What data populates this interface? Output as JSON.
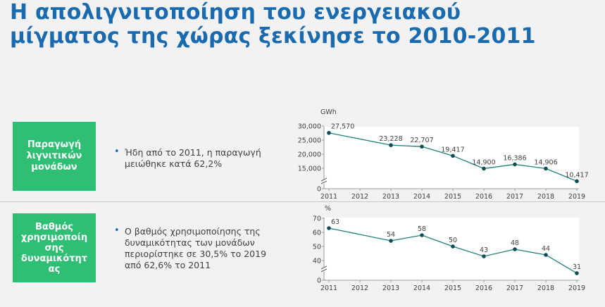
{
  "title": {
    "line1": "Η απολιγνιτοποίηση του ενεργειακού",
    "line2": "μίγματος της χώρας ξεκίνησε το 2010-2011"
  },
  "section1": {
    "label_lines": [
      "Παραγωγή",
      "λιγνιτικών",
      "μονάδων"
    ],
    "bullet_lines": [
      "Ήδη από το 2011, η παραγωγή",
      "μειώθηκε κατά 62,2%"
    ]
  },
  "section2": {
    "label_lines": [
      "Βαθμός",
      "χρησιμοποίη",
      "σης",
      "δυναμικότητ",
      "ας"
    ],
    "bullet_lines": [
      "Ο βαθμός χρησιμοποίησης της",
      "δυναμικότητας των μονάδων",
      "περιορίστηκε σε 30,5% το 2019",
      "από 62,6% το 2011"
    ]
  },
  "colors": {
    "title": "#1a6ab0",
    "box": "#2fbf74",
    "line": "#1f7f7f",
    "marker": "#0b4f55"
  },
  "chart_data": [
    {
      "type": "line",
      "unit_label": "GWh",
      "categories": [
        "2011",
        "2012",
        "2013",
        "2014",
        "2015",
        "2016",
        "2017",
        "2018",
        "2019"
      ],
      "points": [
        {
          "x": "2011",
          "y": 27570,
          "label": "27,570"
        },
        {
          "x": "2013",
          "y": 23228,
          "label": "23,228"
        },
        {
          "x": "2014",
          "y": 22707,
          "label": "22,707"
        },
        {
          "x": "2015",
          "y": 19417,
          "label": "19,417"
        },
        {
          "x": "2016",
          "y": 14900,
          "label": "14,900"
        },
        {
          "x": "2017",
          "y": 16386,
          "label": "16,386"
        },
        {
          "x": "2018",
          "y": 14906,
          "label": "14,906"
        },
        {
          "x": "2019",
          "y": 10417,
          "label": "10,417"
        }
      ],
      "yticks": [
        {
          "v": 30000,
          "label": "30,000"
        },
        {
          "v": 25000,
          "label": "25,000"
        },
        {
          "v": 20000,
          "label": "20,000"
        },
        {
          "v": 15000,
          "label": "15,000"
        },
        {
          "v": 0,
          "label": "0"
        }
      ],
      "ylim": [
        10000,
        30000
      ],
      "axis_break": true,
      "grid": false
    },
    {
      "type": "line",
      "unit_label": "%",
      "categories": [
        "2011",
        "2012",
        "2013",
        "2014",
        "2015",
        "2016",
        "2017",
        "2018",
        "2019"
      ],
      "points": [
        {
          "x": "2011",
          "y": 63,
          "label": "63"
        },
        {
          "x": "2013",
          "y": 54,
          "label": "54"
        },
        {
          "x": "2014",
          "y": 58,
          "label": "58"
        },
        {
          "x": "2015",
          "y": 50,
          "label": "50"
        },
        {
          "x": "2016",
          "y": 43,
          "label": "43"
        },
        {
          "x": "2017",
          "y": 48,
          "label": "48"
        },
        {
          "x": "2018",
          "y": 44,
          "label": "44"
        },
        {
          "x": "2019",
          "y": 31,
          "label": "31"
        }
      ],
      "yticks": [
        {
          "v": 70,
          "label": "70"
        },
        {
          "v": 60,
          "label": "60"
        },
        {
          "v": 50,
          "label": "50"
        },
        {
          "v": 40,
          "label": "40"
        },
        {
          "v": 0,
          "label": "0"
        }
      ],
      "ylim": [
        30,
        70
      ],
      "axis_break": true,
      "grid": false
    }
  ]
}
